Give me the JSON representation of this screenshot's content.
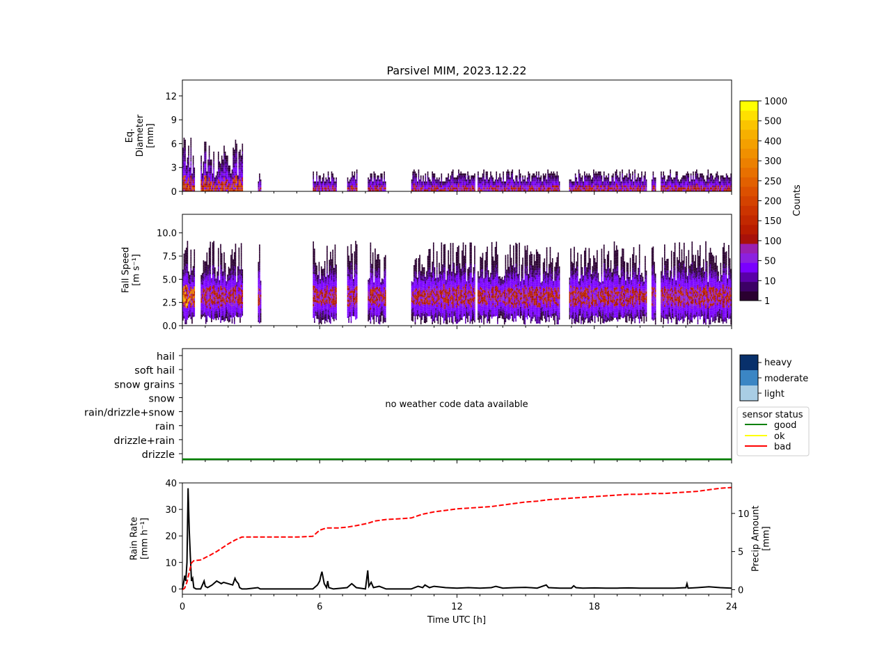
{
  "title": "Parsivel MIM, 2023.12.22",
  "colors": {
    "counts_colormap": [
      "#2a0030",
      "#3c0066",
      "#5a00a8",
      "#7a00ff",
      "#8c20e0",
      "#9a1fb0",
      "#a8110a",
      "#b81c00",
      "#c22800",
      "#cc3400",
      "#d44200",
      "#dc5000",
      "#e26000",
      "#e87000",
      "#ec8000",
      "#f09000",
      "#f4a000",
      "#f7b000",
      "#fbc400",
      "#ffe000",
      "#ffff00"
    ],
    "weather_levels": [
      "#a9cde4",
      "#3b86c4",
      "#08306b"
    ],
    "sensor_good": "#008000",
    "sensor_ok": "#ffff00",
    "sensor_bad": "#ff0000",
    "rain_rate_line": "#000000",
    "precip_amount_line": "#ff0000"
  },
  "x_axis": {
    "label": "Time UTC [h]",
    "ticks": [
      "0",
      "6",
      "12",
      "18",
      "24"
    ],
    "range": [
      0,
      24
    ]
  },
  "panel1": {
    "ylabel_lines": [
      "Eq.",
      "Diameter",
      "[mm]"
    ],
    "ticks": [
      "0",
      "3",
      "6",
      "9",
      "12"
    ],
    "range": [
      0,
      14
    ]
  },
  "panel2": {
    "ylabel_lines": [
      "Fall Speed",
      "[m s⁻¹]"
    ],
    "ticks": [
      "0.0",
      "2.5",
      "5.0",
      "7.5",
      "10.0"
    ],
    "range": [
      0,
      12
    ]
  },
  "colorbar": {
    "label": "Counts",
    "tick_labels": [
      "1",
      "10",
      "50",
      "100",
      "150",
      "200",
      "250",
      "300",
      "400",
      "500",
      "1000"
    ]
  },
  "panel3": {
    "categories": [
      "hail",
      "soft hail",
      "snow grains",
      "snow",
      "rain/drizzle+snow",
      "rain",
      "drizzle+rain",
      "drizzle"
    ],
    "no_data_message": "no weather code data available",
    "intensity_legend": [
      "heavy",
      "moderate",
      "light"
    ],
    "sensor_legend_title": "sensor status",
    "sensor_legend": [
      "good",
      "ok",
      "bad"
    ]
  },
  "panel4": {
    "ylabel_left_lines": [
      "Rain Rate",
      "[mm h⁻¹]"
    ],
    "ylabel_right_lines": [
      "Precip Amount",
      "[mm]"
    ],
    "left_ticks": [
      "0",
      "10",
      "20",
      "30",
      "40"
    ],
    "right_ticks": [
      "0",
      "5",
      "10"
    ],
    "left_range": [
      -2,
      40
    ],
    "right_range": [
      -0.6,
      14
    ]
  },
  "chart_data": [
    {
      "type": "heatmap",
      "ylabel": "Eq. Diameter [mm]",
      "ylim": [
        0,
        14
      ],
      "xlim": [
        0,
        24
      ],
      "precip_periods_h": [
        [
          0.0,
          0.5
        ],
        [
          0.8,
          2.6
        ],
        [
          3.3,
          3.4
        ],
        [
          5.7,
          6.7
        ],
        [
          7.2,
          7.6
        ],
        [
          8.1,
          8.9
        ],
        [
          10.0,
          12.8
        ],
        [
          12.9,
          16.5
        ],
        [
          16.9,
          20.3
        ],
        [
          20.5,
          20.7
        ],
        [
          20.9,
          24.0
        ]
      ],
      "colorbar": {
        "label": "Counts",
        "ticks": [
          1,
          10,
          50,
          100,
          150,
          200,
          250,
          300,
          400,
          500,
          1000
        ]
      }
    },
    {
      "type": "heatmap",
      "ylabel": "Fall Speed [m s-1]",
      "ylim": [
        0,
        12
      ],
      "xlim": [
        0,
        24
      ],
      "colorbar": {
        "label": "Counts",
        "ticks": [
          1,
          10,
          50,
          100,
          150,
          200,
          250,
          300,
          400,
          500,
          1000
        ]
      }
    },
    {
      "type": "line",
      "categories": [
        "hail",
        "soft hail",
        "snow grains",
        "snow",
        "rain/drizzle+snow",
        "rain",
        "drizzle+rain",
        "drizzle"
      ],
      "annotation": "no weather code data available",
      "sensor_status": {
        "value": "good",
        "x": [
          0,
          24
        ]
      }
    },
    {
      "type": "line",
      "xlabel": "Time UTC [h]",
      "xlim": [
        0,
        24
      ],
      "series": [
        {
          "name": "Rain Rate",
          "axis": "left",
          "ylim": [
            -2,
            40
          ],
          "x": [
            0,
            0.05,
            0.1,
            0.15,
            0.2,
            0.25,
            0.3,
            0.35,
            0.4,
            0.45,
            0.5,
            0.6,
            0.8,
            0.9,
            0.95,
            1.0,
            1.1,
            1.3,
            1.5,
            1.6,
            1.7,
            1.8,
            2.0,
            2.2,
            2.3,
            2.35,
            2.45,
            2.5,
            2.6,
            2.8,
            3.3,
            3.4,
            5.7,
            5.9,
            6.0,
            6.05,
            6.1,
            6.2,
            6.3,
            6.35,
            6.4,
            6.6,
            7.2,
            7.4,
            7.6,
            8.0,
            8.1,
            8.15,
            8.25,
            8.35,
            8.6,
            8.9,
            10.0,
            10.3,
            10.5,
            10.6,
            10.8,
            11.0,
            11.5,
            12.0,
            12.5,
            13.0,
            13.5,
            13.7,
            14.0,
            14.5,
            15.0,
            15.5,
            15.9,
            16.0,
            16.5,
            17.0,
            17.1,
            17.2,
            17.5,
            18.0,
            18.5,
            19.0,
            19.5,
            20.0,
            20.5,
            21.0,
            21.5,
            22.0,
            22.05,
            22.1,
            22.5,
            23.0,
            23.5,
            24.0
          ],
          "y": [
            0,
            2,
            5,
            3,
            10,
            38,
            22,
            12,
            3,
            4,
            0.5,
            0,
            0,
            2,
            3,
            1,
            0.5,
            1.5,
            3,
            2.5,
            2,
            2.5,
            2,
            1.5,
            4,
            3,
            2,
            0.5,
            0,
            0,
            0.5,
            0,
            0,
            1.5,
            3,
            5,
            6.5,
            2,
            0.5,
            3,
            0.5,
            0,
            0.5,
            2,
            0.5,
            0,
            7,
            1,
            2.5,
            0.5,
            1,
            0,
            0,
            1,
            0.5,
            1.5,
            0.5,
            1,
            0.5,
            0.3,
            0.5,
            0.3,
            0.5,
            1,
            0.3,
            0.5,
            0.6,
            0.3,
            1.5,
            0.5,
            0.3,
            0.3,
            1.2,
            0.5,
            0.3,
            0.4,
            0.3,
            0.3,
            0.4,
            0.3,
            0.3,
            0.3,
            0.3,
            0.5,
            2,
            0.3,
            0.5,
            0.8,
            0.5,
            0.3
          ]
        },
        {
          "name": "Precip Amount",
          "axis": "right",
          "ylim": [
            -0.6,
            14
          ],
          "x": [
            0,
            0.1,
            0.2,
            0.3,
            0.4,
            0.5,
            0.8,
            1.0,
            1.2,
            1.5,
            1.8,
            2.0,
            2.3,
            2.6,
            3.0,
            4.0,
            5.0,
            5.7,
            6.0,
            6.3,
            6.8,
            7.2,
            7.6,
            8.1,
            8.4,
            8.9,
            9.5,
            10.0,
            10.5,
            11.0,
            11.5,
            12.0,
            12.5,
            13.0,
            13.5,
            14.0,
            14.5,
            15.0,
            15.5,
            16.0,
            16.5,
            17.0,
            17.5,
            18.0,
            18.5,
            19.0,
            19.5,
            20.0,
            20.5,
            21.0,
            21.5,
            22.0,
            22.5,
            23.0,
            23.5,
            24.0
          ],
          "y": [
            0,
            0.2,
            1,
            2.3,
            3.5,
            3.8,
            3.9,
            4.2,
            4.5,
            5.0,
            5.6,
            6.0,
            6.5,
            6.9,
            6.9,
            6.9,
            6.9,
            7.0,
            7.8,
            8.1,
            8.1,
            8.2,
            8.4,
            8.7,
            9.0,
            9.2,
            9.3,
            9.4,
            9.9,
            10.2,
            10.4,
            10.6,
            10.7,
            10.8,
            10.9,
            11.1,
            11.3,
            11.5,
            11.6,
            11.8,
            11.9,
            12.0,
            12.1,
            12.2,
            12.3,
            12.4,
            12.5,
            12.5,
            12.6,
            12.6,
            12.7,
            12.8,
            12.9,
            13.1,
            13.3,
            13.4
          ]
        }
      ]
    }
  ]
}
